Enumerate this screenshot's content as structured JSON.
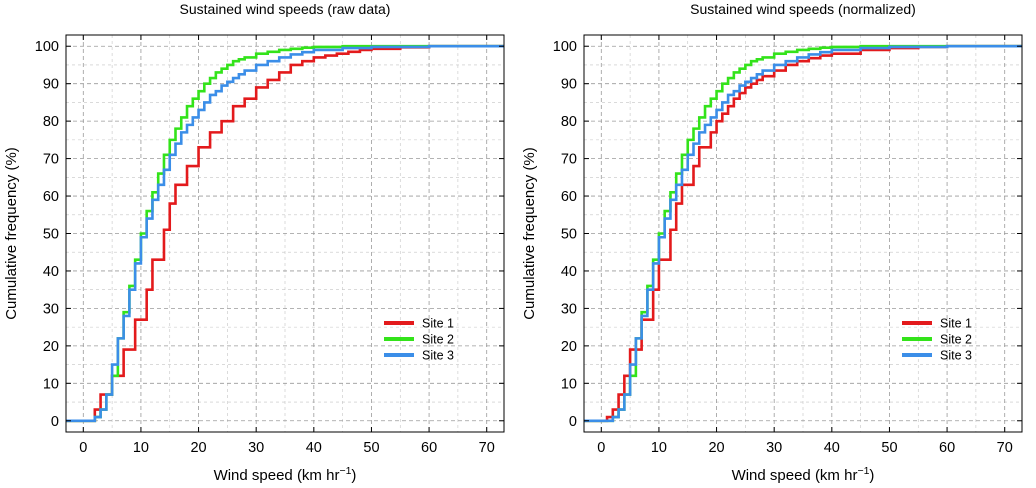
{
  "colors": {
    "site1": "#e31a1c",
    "site2": "#33e31a",
    "site3": "#3b8ee8"
  },
  "chart_data": [
    {
      "type": "line",
      "step": true,
      "title": "Sustained wind speeds (raw data)",
      "xlabel": "Wind speed (km hr",
      "xlabel_sup": "−1",
      "xlabel_close": ")",
      "ylabel": "Cumulative frequency (%)",
      "xlim": [
        -3,
        73
      ],
      "ylim": [
        -3,
        103
      ],
      "xticks": [
        0,
        10,
        20,
        30,
        40,
        50,
        60,
        70
      ],
      "yticks": [
        0,
        10,
        20,
        30,
        40,
        50,
        60,
        70,
        80,
        90,
        100
      ],
      "legend_position": "lower-right",
      "series": [
        {
          "name": "Site 1",
          "color": "#e31a1c",
          "x": [
            -3,
            2,
            3,
            4,
            5,
            6,
            7,
            8,
            9,
            10,
            11,
            12,
            13,
            14,
            15,
            16,
            18,
            20,
            22,
            24,
            26,
            28,
            30,
            32,
            34,
            36,
            38,
            40,
            42,
            44,
            46,
            48,
            50,
            55,
            60,
            65,
            73
          ],
          "y": [
            0,
            3,
            7,
            7,
            12,
            12,
            19,
            19,
            27,
            27,
            35,
            43,
            43,
            51,
            58,
            63,
            68,
            73,
            77,
            80,
            84,
            86,
            89,
            91,
            93,
            95,
            96,
            97,
            97.5,
            98,
            98.5,
            99,
            99.3,
            99.7,
            100,
            100,
            100
          ]
        },
        {
          "name": "Site 2",
          "color": "#33e31a",
          "x": [
            -3,
            2,
            3,
            4,
            5,
            6,
            7,
            8,
            9,
            10,
            11,
            12,
            13,
            14,
            15,
            16,
            17,
            18,
            19,
            20,
            21,
            22,
            23,
            24,
            25,
            26,
            27,
            28,
            30,
            32,
            34,
            36,
            38,
            40,
            45,
            50,
            60,
            73
          ],
          "y": [
            0,
            1,
            3,
            7,
            12,
            22,
            29,
            36,
            43,
            50,
            56,
            61,
            66,
            71,
            75,
            78,
            81,
            84,
            86,
            88,
            90,
            91.5,
            93,
            94,
            95,
            96,
            96.5,
            97,
            98,
            98.5,
            99,
            99.3,
            99.6,
            99.8,
            100,
            100,
            100,
            100
          ]
        },
        {
          "name": "Site 3",
          "color": "#3b8ee8",
          "x": [
            -3,
            2,
            3,
            4,
            5,
            6,
            7,
            8,
            9,
            10,
            11,
            12,
            13,
            14,
            15,
            16,
            17,
            18,
            19,
            20,
            21,
            22,
            23,
            24,
            25,
            26,
            27,
            28,
            30,
            32,
            34,
            36,
            38,
            40,
            45,
            50,
            60,
            73
          ],
          "y": [
            0,
            1,
            3,
            7,
            15,
            22,
            28,
            35,
            42,
            49,
            54,
            59,
            63,
            67,
            71,
            74,
            77,
            79,
            81,
            83,
            85,
            87,
            88,
            89.5,
            90.5,
            91.5,
            92.5,
            93.5,
            95,
            96,
            97,
            97.8,
            98.4,
            99,
            99.5,
            99.8,
            100,
            100
          ]
        }
      ]
    },
    {
      "type": "line",
      "step": true,
      "title": "Sustained wind speeds (normalized)",
      "xlabel": "Wind speed (km hr",
      "xlabel_sup": "−1",
      "xlabel_close": ")",
      "ylabel": "Cumulative frequency (%)",
      "xlim": [
        -3,
        73
      ],
      "ylim": [
        -3,
        103
      ],
      "xticks": [
        0,
        10,
        20,
        30,
        40,
        50,
        60,
        70
      ],
      "yticks": [
        0,
        10,
        20,
        30,
        40,
        50,
        60,
        70,
        80,
        90,
        100
      ],
      "legend_position": "lower-right",
      "series": [
        {
          "name": "Site 1",
          "color": "#e31a1c",
          "x": [
            -3,
            1,
            2,
            3,
            4,
            5,
            6,
            7,
            8,
            9,
            10,
            11,
            12,
            13,
            14,
            15,
            16,
            17,
            18,
            19,
            20,
            21,
            22,
            23,
            24,
            25,
            26,
            27,
            28,
            30,
            32,
            34,
            36,
            38,
            40,
            45,
            50,
            55,
            60,
            73
          ],
          "y": [
            0,
            1,
            3,
            7,
            12,
            19,
            19,
            27,
            27,
            35,
            43,
            43,
            51,
            58,
            63,
            63,
            68,
            73,
            73,
            77,
            80,
            82,
            84,
            86,
            87.5,
            89,
            90,
            91,
            92,
            93.5,
            95,
            96,
            96.8,
            97.5,
            98,
            99,
            99.5,
            99.8,
            100,
            100
          ]
        },
        {
          "name": "Site 2",
          "color": "#33e31a",
          "x": [
            -3,
            2,
            3,
            4,
            5,
            6,
            7,
            8,
            9,
            10,
            11,
            12,
            13,
            14,
            15,
            16,
            17,
            18,
            19,
            20,
            21,
            22,
            23,
            24,
            25,
            26,
            27,
            28,
            30,
            32,
            34,
            36,
            38,
            40,
            45,
            50,
            60,
            73
          ],
          "y": [
            0,
            1,
            3,
            7,
            12,
            22,
            29,
            36,
            43,
            50,
            56,
            61,
            66,
            71,
            75,
            78,
            81,
            84,
            86,
            88,
            90,
            91.5,
            93,
            94,
            95,
            96,
            96.5,
            97,
            98,
            98.5,
            99,
            99.3,
            99.6,
            99.8,
            100,
            100,
            100,
            100
          ]
        },
        {
          "name": "Site 3",
          "color": "#3b8ee8",
          "x": [
            -3,
            2,
            3,
            4,
            5,
            6,
            7,
            8,
            9,
            10,
            11,
            12,
            13,
            14,
            15,
            16,
            17,
            18,
            19,
            20,
            21,
            22,
            23,
            24,
            25,
            26,
            27,
            28,
            30,
            32,
            34,
            36,
            38,
            40,
            45,
            50,
            60,
            73
          ],
          "y": [
            0,
            1,
            3,
            7,
            15,
            22,
            28,
            35,
            42,
            49,
            54,
            59,
            63,
            67,
            71,
            74,
            77,
            79,
            81,
            83,
            85,
            87,
            88,
            89.5,
            90.5,
            91.5,
            92.5,
            93.5,
            95,
            96,
            97,
            97.8,
            98.4,
            99,
            99.5,
            99.8,
            100,
            100
          ]
        }
      ]
    }
  ]
}
